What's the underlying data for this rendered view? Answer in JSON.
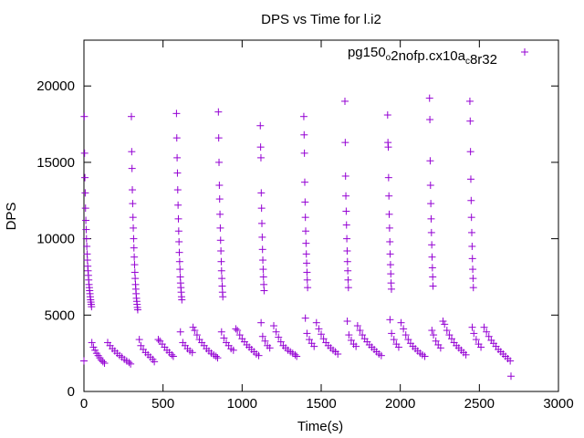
{
  "chart_data": {
    "type": "scatter",
    "title": "DPS vs Time for l.i2",
    "xlabel": "Time(s)",
    "ylabel": "DPS",
    "xlim": [
      0,
      3000
    ],
    "ylim": [
      0,
      23000
    ],
    "xticks": [
      0,
      500,
      1000,
      1500,
      2000,
      2500,
      3000
    ],
    "yticks": [
      0,
      5000,
      10000,
      15000,
      20000
    ],
    "grid": false,
    "legend_position": "top-right",
    "marker": "+",
    "color": "#9400d3",
    "series": [
      {
        "name": "pg150_o2nofp.cx10a_c8r32",
        "points": [
          [
            0,
            2000
          ],
          [
            2,
            18000
          ],
          [
            4,
            15600
          ],
          [
            6,
            14000
          ],
          [
            8,
            13000
          ],
          [
            10,
            12000
          ],
          [
            12,
            11200
          ],
          [
            14,
            10600
          ],
          [
            16,
            10000
          ],
          [
            18,
            9500
          ],
          [
            20,
            9000
          ],
          [
            22,
            8600
          ],
          [
            24,
            8200
          ],
          [
            26,
            7900
          ],
          [
            28,
            7600
          ],
          [
            30,
            7300
          ],
          [
            32,
            7000
          ],
          [
            34,
            6800
          ],
          [
            36,
            6600
          ],
          [
            38,
            6400
          ],
          [
            40,
            6200
          ],
          [
            42,
            6000
          ],
          [
            44,
            5850
          ],
          [
            46,
            5700
          ],
          [
            48,
            5550
          ],
          [
            50,
            3200
          ],
          [
            60,
            2900
          ],
          [
            70,
            2700
          ],
          [
            80,
            2500
          ],
          [
            90,
            2350
          ],
          [
            100,
            2200
          ],
          [
            110,
            2050
          ],
          [
            120,
            1950
          ],
          [
            130,
            1850
          ],
          [
            150,
            3200
          ],
          [
            165,
            3000
          ],
          [
            180,
            2800
          ],
          [
            195,
            2650
          ],
          [
            210,
            2500
          ],
          [
            225,
            2350
          ],
          [
            240,
            2250
          ],
          [
            255,
            2100
          ],
          [
            270,
            2000
          ],
          [
            285,
            1900
          ],
          [
            295,
            1800
          ],
          [
            300,
            18000
          ],
          [
            302,
            15700
          ],
          [
            304,
            14600
          ],
          [
            306,
            13200
          ],
          [
            308,
            12300
          ],
          [
            310,
            11400
          ],
          [
            312,
            10700
          ],
          [
            314,
            10000
          ],
          [
            316,
            9400
          ],
          [
            318,
            8800
          ],
          [
            320,
            8300
          ],
          [
            322,
            7800
          ],
          [
            324,
            7400
          ],
          [
            326,
            7000
          ],
          [
            328,
            6700
          ],
          [
            330,
            6400
          ],
          [
            332,
            6100
          ],
          [
            334,
            5900
          ],
          [
            336,
            5700
          ],
          [
            338,
            5500
          ],
          [
            340,
            5350
          ],
          [
            350,
            3400
          ],
          [
            360,
            3000
          ],
          [
            375,
            2750
          ],
          [
            390,
            2550
          ],
          [
            405,
            2400
          ],
          [
            420,
            2250
          ],
          [
            435,
            2100
          ],
          [
            445,
            1950
          ],
          [
            470,
            3400
          ],
          [
            480,
            3300
          ],
          [
            495,
            3100
          ],
          [
            510,
            2900
          ],
          [
            525,
            2700
          ],
          [
            540,
            2550
          ],
          [
            555,
            2400
          ],
          [
            565,
            2300
          ],
          [
            585,
            18200
          ],
          [
            587,
            16600
          ],
          [
            589,
            15300
          ],
          [
            591,
            14300
          ],
          [
            593,
            13200
          ],
          [
            595,
            12200
          ],
          [
            597,
            11300
          ],
          [
            599,
            10500
          ],
          [
            601,
            9800
          ],
          [
            603,
            9100
          ],
          [
            605,
            8500
          ],
          [
            607,
            8000
          ],
          [
            609,
            7500
          ],
          [
            611,
            7100
          ],
          [
            613,
            6800
          ],
          [
            615,
            6500
          ],
          [
            617,
            6200
          ],
          [
            619,
            6000
          ],
          [
            610,
            3900
          ],
          [
            625,
            3200
          ],
          [
            640,
            3000
          ],
          [
            655,
            2800
          ],
          [
            670,
            2650
          ],
          [
            685,
            2550
          ],
          [
            690,
            4200
          ],
          [
            700,
            4000
          ],
          [
            715,
            3700
          ],
          [
            730,
            3400
          ],
          [
            745,
            3200
          ],
          [
            760,
            3000
          ],
          [
            775,
            2800
          ],
          [
            790,
            2650
          ],
          [
            805,
            2500
          ],
          [
            820,
            2400
          ],
          [
            835,
            2300
          ],
          [
            845,
            2200
          ],
          [
            850,
            18300
          ],
          [
            852,
            16600
          ],
          [
            854,
            15000
          ],
          [
            856,
            13500
          ],
          [
            858,
            12600
          ],
          [
            860,
            11600
          ],
          [
            862,
            10700
          ],
          [
            864,
            9900
          ],
          [
            866,
            9200
          ],
          [
            868,
            8500
          ],
          [
            870,
            7900
          ],
          [
            872,
            7400
          ],
          [
            874,
            6900
          ],
          [
            876,
            6500
          ],
          [
            878,
            6200
          ],
          [
            870,
            3900
          ],
          [
            885,
            3500
          ],
          [
            900,
            3200
          ],
          [
            915,
            3000
          ],
          [
            930,
            2800
          ],
          [
            945,
            2700
          ],
          [
            960,
            4100
          ],
          [
            970,
            4000
          ],
          [
            985,
            3700
          ],
          [
            1000,
            3450
          ],
          [
            1015,
            3250
          ],
          [
            1030,
            3050
          ],
          [
            1045,
            2900
          ],
          [
            1060,
            2750
          ],
          [
            1075,
            2600
          ],
          [
            1090,
            2450
          ],
          [
            1105,
            2350
          ],
          [
            1115,
            17400
          ],
          [
            1117,
            16000
          ],
          [
            1119,
            15300
          ],
          [
            1121,
            13000
          ],
          [
            1123,
            12000
          ],
          [
            1125,
            11000
          ],
          [
            1127,
            10100
          ],
          [
            1129,
            9300
          ],
          [
            1131,
            8600
          ],
          [
            1133,
            8000
          ],
          [
            1135,
            7500
          ],
          [
            1137,
            7000
          ],
          [
            1139,
            6600
          ],
          [
            1120,
            4500
          ],
          [
            1130,
            3600
          ],
          [
            1145,
            3300
          ],
          [
            1160,
            3000
          ],
          [
            1175,
            2850
          ],
          [
            1200,
            4300
          ],
          [
            1215,
            3900
          ],
          [
            1230,
            3550
          ],
          [
            1245,
            3250
          ],
          [
            1260,
            3000
          ],
          [
            1275,
            2850
          ],
          [
            1290,
            2700
          ],
          [
            1305,
            2600
          ],
          [
            1320,
            2500
          ],
          [
            1335,
            2400
          ],
          [
            1345,
            2300
          ],
          [
            1390,
            18000
          ],
          [
            1392,
            16800
          ],
          [
            1394,
            15600
          ],
          [
            1396,
            13700
          ],
          [
            1398,
            12400
          ],
          [
            1400,
            11400
          ],
          [
            1402,
            10500
          ],
          [
            1404,
            9700
          ],
          [
            1406,
            9000
          ],
          [
            1408,
            8400
          ],
          [
            1410,
            7800
          ],
          [
            1412,
            7300
          ],
          [
            1414,
            6800
          ],
          [
            1400,
            4800
          ],
          [
            1410,
            3800
          ],
          [
            1425,
            3400
          ],
          [
            1440,
            3150
          ],
          [
            1455,
            2950
          ],
          [
            1470,
            4500
          ],
          [
            1485,
            4100
          ],
          [
            1500,
            3750
          ],
          [
            1515,
            3450
          ],
          [
            1530,
            3200
          ],
          [
            1545,
            3000
          ],
          [
            1560,
            2850
          ],
          [
            1575,
            2700
          ],
          [
            1590,
            2600
          ],
          [
            1605,
            2450
          ],
          [
            1650,
            19000
          ],
          [
            1652,
            16300
          ],
          [
            1654,
            14100
          ],
          [
            1656,
            12800
          ],
          [
            1658,
            11800
          ],
          [
            1660,
            10900
          ],
          [
            1662,
            10000
          ],
          [
            1664,
            9200
          ],
          [
            1666,
            8500
          ],
          [
            1668,
            7900
          ],
          [
            1670,
            7300
          ],
          [
            1672,
            6800
          ],
          [
            1665,
            4600
          ],
          [
            1675,
            3700
          ],
          [
            1690,
            3350
          ],
          [
            1705,
            3100
          ],
          [
            1720,
            2950
          ],
          [
            1730,
            4300
          ],
          [
            1745,
            4000
          ],
          [
            1760,
            3700
          ],
          [
            1775,
            3450
          ],
          [
            1790,
            3250
          ],
          [
            1805,
            3050
          ],
          [
            1820,
            2900
          ],
          [
            1835,
            2750
          ],
          [
            1850,
            2600
          ],
          [
            1865,
            2450
          ],
          [
            1880,
            2350
          ],
          [
            1920,
            18100
          ],
          [
            1922,
            16300
          ],
          [
            1924,
            16000
          ],
          [
            1926,
            14000
          ],
          [
            1928,
            12800
          ],
          [
            1930,
            11600
          ],
          [
            1932,
            10700
          ],
          [
            1934,
            9800
          ],
          [
            1936,
            9000
          ],
          [
            1938,
            8300
          ],
          [
            1940,
            7700
          ],
          [
            1942,
            7100
          ],
          [
            1944,
            6700
          ],
          [
            1935,
            4700
          ],
          [
            1945,
            3800
          ],
          [
            1960,
            3400
          ],
          [
            1975,
            3100
          ],
          [
            1990,
            2900
          ],
          [
            2005,
            4500
          ],
          [
            2020,
            4100
          ],
          [
            2035,
            3700
          ],
          [
            2050,
            3400
          ],
          [
            2065,
            3150
          ],
          [
            2080,
            2950
          ],
          [
            2095,
            2800
          ],
          [
            2110,
            2650
          ],
          [
            2125,
            2500
          ],
          [
            2140,
            2400
          ],
          [
            2155,
            2300
          ],
          [
            2185,
            19200
          ],
          [
            2187,
            17800
          ],
          [
            2189,
            15100
          ],
          [
            2191,
            13500
          ],
          [
            2193,
            12300
          ],
          [
            2195,
            11300
          ],
          [
            2197,
            10400
          ],
          [
            2199,
            9600
          ],
          [
            2201,
            8800
          ],
          [
            2203,
            8100
          ],
          [
            2205,
            7500
          ],
          [
            2207,
            6900
          ],
          [
            2200,
            4000
          ],
          [
            2210,
            3700
          ],
          [
            2225,
            3300
          ],
          [
            2240,
            3050
          ],
          [
            2255,
            2850
          ],
          [
            2270,
            4600
          ],
          [
            2280,
            4400
          ],
          [
            2295,
            4000
          ],
          [
            2310,
            3700
          ],
          [
            2325,
            3450
          ],
          [
            2340,
            3200
          ],
          [
            2355,
            3000
          ],
          [
            2370,
            2850
          ],
          [
            2385,
            2700
          ],
          [
            2400,
            2550
          ],
          [
            2415,
            2400
          ],
          [
            2440,
            19000
          ],
          [
            2442,
            17700
          ],
          [
            2444,
            15700
          ],
          [
            2446,
            13900
          ],
          [
            2448,
            12500
          ],
          [
            2450,
            11400
          ],
          [
            2452,
            10400
          ],
          [
            2454,
            9500
          ],
          [
            2456,
            8700
          ],
          [
            2458,
            8000
          ],
          [
            2460,
            7400
          ],
          [
            2462,
            6800
          ],
          [
            2455,
            4200
          ],
          [
            2465,
            3800
          ],
          [
            2480,
            3400
          ],
          [
            2495,
            3100
          ],
          [
            2510,
            2900
          ],
          [
            2530,
            4200
          ],
          [
            2545,
            3900
          ],
          [
            2560,
            3600
          ],
          [
            2575,
            3350
          ],
          [
            2590,
            3150
          ],
          [
            2605,
            2950
          ],
          [
            2620,
            2750
          ],
          [
            2635,
            2600
          ],
          [
            2650,
            2450
          ],
          [
            2665,
            2300
          ],
          [
            2680,
            2150
          ],
          [
            2695,
            2000
          ],
          [
            2700,
            1000
          ]
        ]
      }
    ]
  }
}
